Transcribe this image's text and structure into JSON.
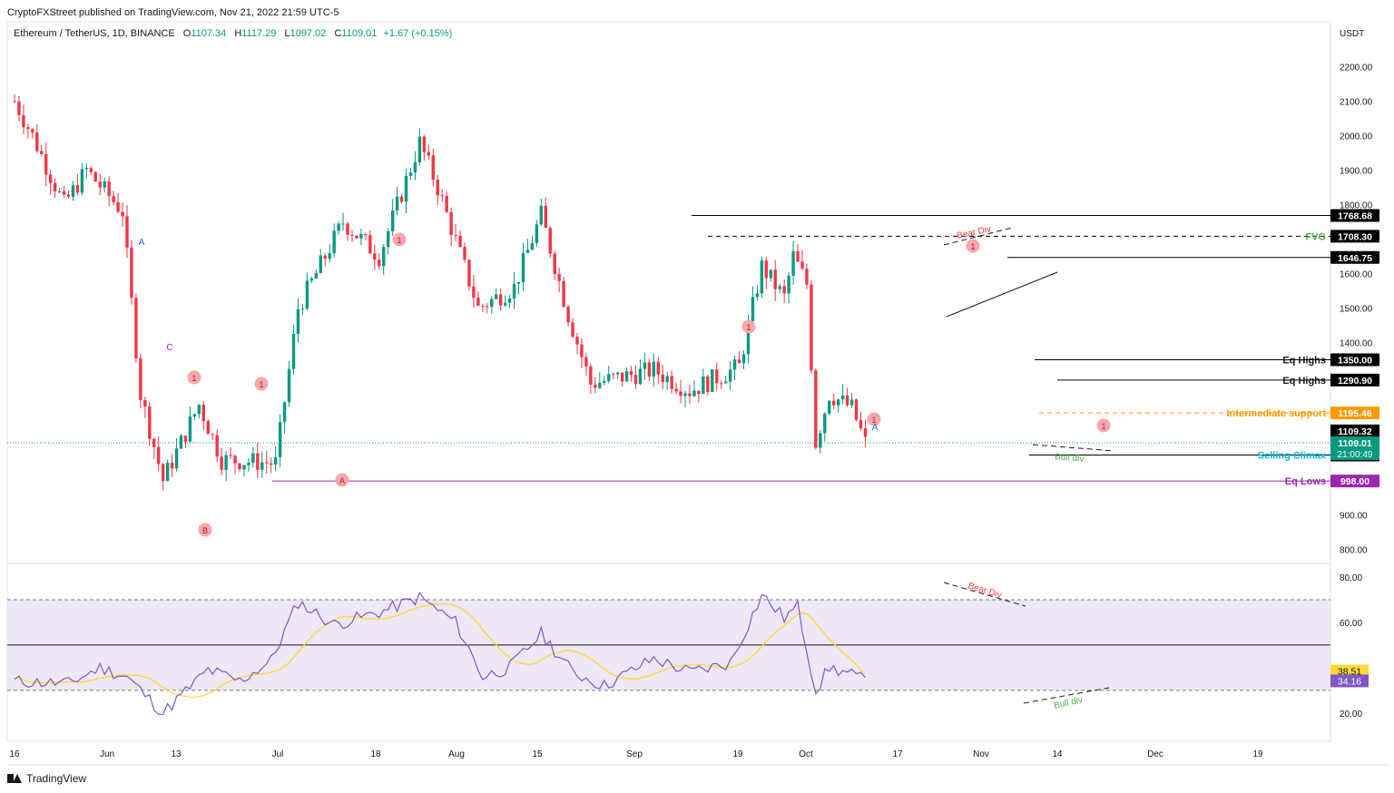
{
  "header": {
    "published_text": "CryptoFXStreet published on TradingView.com, Nov 21, 2022 21:59 UTC-5"
  },
  "legend": {
    "symbol": "Ethereum / TetherUS, 1D, BINANCE",
    "o_label": "O",
    "o": "1107.34",
    "h_label": "H",
    "h": "1117.29",
    "l_label": "L",
    "l": "1097.02",
    "c_label": "C",
    "c": "1109.01",
    "change": "+1.67 (+0.15%)"
  },
  "price_axis": {
    "unit": "USDT",
    "ticks": [
      "2200.00",
      "2100.00",
      "2000.00",
      "1900.00",
      "1800.00",
      "1600.00",
      "1500.00",
      "1400.00",
      "900.00",
      "800.00"
    ]
  },
  "rsi_axis": {
    "ticks": [
      "80.00",
      "60.00",
      "20.00"
    ]
  },
  "time_axis": {
    "ticks": [
      "16",
      "Jun",
      "13",
      "Jul",
      "18",
      "Aug",
      "15",
      "Sep",
      "19",
      "Oct",
      "17",
      "Nov",
      "14",
      "Dec",
      "19"
    ]
  },
  "price_levels": [
    {
      "label": "",
      "tag": "1768.68",
      "value": 1768.68,
      "style": "solid",
      "color": "#000000",
      "tag_bg": "#000000"
    },
    {
      "label": "FVG",
      "tag": "1708.30",
      "value": 1708.3,
      "style": "dashed",
      "color": "#000000",
      "tag_bg": "#000000",
      "label_color": "#4caf50"
    },
    {
      "label": "",
      "tag": "1646.75",
      "value": 1646.75,
      "style": "solid",
      "color": "#000000",
      "tag_bg": "#000000"
    },
    {
      "label": "Eq Highs",
      "tag": "1350.00",
      "value": 1350.0,
      "style": "solid",
      "color": "#000000",
      "tag_bg": "#000000",
      "label_color": "#131722"
    },
    {
      "label": "Eq Highs",
      "tag": "1290.90",
      "value": 1290.9,
      "style": "solid",
      "color": "#000000",
      "tag_bg": "#000000",
      "label_color": "#131722"
    },
    {
      "label": "Intermediate support",
      "tag": "1195.46",
      "value": 1195.46,
      "style": "dashed",
      "color": "#ff9800",
      "tag_bg": "#ff9800",
      "label_color": "#ff9800"
    },
    {
      "label": "Selling Climax",
      "tag": "1073.53",
      "value": 1073.53,
      "style": "solid",
      "color": "#000000",
      "tag_bg": "#000000",
      "label_color": "#00bcd4"
    },
    {
      "label": "Eq Lows",
      "tag": "998.00",
      "value": 998.0,
      "style": "solid",
      "color": "#9c27b0",
      "tag_bg": "#9c27b0",
      "label_color": "#9c27b0"
    }
  ],
  "price_tags": {
    "high_tag": "1109.32",
    "last_price": "1109.01",
    "countdown": "21:00:49"
  },
  "rsi_tags": {
    "ma": "38.51",
    "rsi": "34.16"
  },
  "annotations": {
    "bear_div": "Bear Div",
    "bull_div": "Bull div",
    "wave_labels": [
      "A",
      "C",
      "B",
      "A",
      "A"
    ],
    "marker": "1"
  },
  "colors": {
    "up": "#089981",
    "down": "#f23645",
    "rsi_line": "#7e57c2",
    "rsi_ma": "#fdd835",
    "rsi_band": "#ede7f6"
  },
  "chart_data": [
    {
      "type": "candlestick",
      "title": "Ethereum / TetherUS, 1D, BINANCE",
      "x_range": [
        "2022-05-16",
        "2022-12-24"
      ],
      "ylim": [
        750,
        2300
      ],
      "ohlc_key_points": [
        {
          "date": "2022-05-16",
          "o": 2050,
          "h": 2200,
          "l": 1950,
          "c": 2100
        },
        {
          "date": "2022-06-13",
          "o": 1450,
          "h": 1550,
          "l": 1200,
          "c": 1250
        },
        {
          "date": "2022-06-18",
          "o": 1100,
          "h": 1150,
          "l": 880,
          "c": 1000
        },
        {
          "date": "2022-07-13",
          "o": 1050,
          "h": 1100,
          "l": 1000,
          "c": 1080
        },
        {
          "date": "2022-08-14",
          "o": 1950,
          "h": 2030,
          "l": 1900,
          "c": 1980
        },
        {
          "date": "2022-09-10",
          "o": 1750,
          "h": 1790,
          "l": 1700,
          "c": 1770
        },
        {
          "date": "2022-10-13",
          "o": 1300,
          "h": 1310,
          "l": 1190,
          "c": 1280
        },
        {
          "date": "2022-11-05",
          "o": 1640,
          "h": 1680,
          "l": 1600,
          "c": 1650
        },
        {
          "date": "2022-11-09",
          "o": 1300,
          "h": 1350,
          "l": 1073.53,
          "c": 1100
        },
        {
          "date": "2022-11-21",
          "o": 1107.34,
          "h": 1117.29,
          "l": 1097.02,
          "c": 1109.01
        }
      ]
    },
    {
      "type": "line",
      "title": "RSI",
      "ylim": [
        10,
        85
      ],
      "bands": [
        30,
        50,
        70
      ],
      "series": [
        {
          "values_key_points": [
            {
              "date": "2022-06-18",
              "v": 20
            },
            {
              "date": "2022-07-18",
              "v": 69
            },
            {
              "date": "2022-08-14",
              "v": 71
            },
            {
              "date": "2022-10-29",
              "v": 72
            },
            {
              "date": "2022-11-09",
              "v": 30
            },
            {
              "date": "2022-11-21",
              "v": 34.16
            }
          ]
        },
        {
          "values_key_points": [
            {
              "date": "2022-06-20",
              "v": 26
            },
            {
              "date": "2022-08-01",
              "v": 63
            },
            {
              "date": "2022-11-05",
              "v": 68
            },
            {
              "date": "2022-11-21",
              "v": 38.51
            }
          ]
        }
      ]
    }
  ]
}
